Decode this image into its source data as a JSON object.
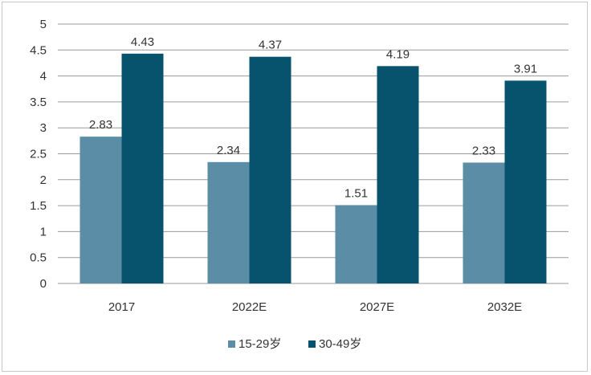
{
  "chart_data": {
    "type": "bar",
    "title": "",
    "xlabel": "",
    "ylabel": "",
    "categories": [
      "2017",
      "2022E",
      "2027E",
      "2032E"
    ],
    "series": [
      {
        "name": "15-29岁",
        "values": [
          2.83,
          2.34,
          1.51,
          2.33
        ],
        "color": "#5b8ea6"
      },
      {
        "name": "30-49岁",
        "values": [
          4.43,
          4.37,
          4.19,
          3.91
        ],
        "color": "#07536e"
      }
    ],
    "data_labels": [
      [
        "2.83",
        "2.34",
        "1.51",
        "2.33"
      ],
      [
        "4.43",
        "4.37",
        "4.19",
        "3.91"
      ]
    ],
    "yticks": [
      "0",
      "0.5",
      "1",
      "1.5",
      "2",
      "2.5",
      "3",
      "3.5",
      "4",
      "4.5",
      "5"
    ],
    "ylim": [
      0,
      5
    ],
    "grid": true,
    "legend_position": "bottom",
    "gridline_color": "#9a9a9a"
  }
}
